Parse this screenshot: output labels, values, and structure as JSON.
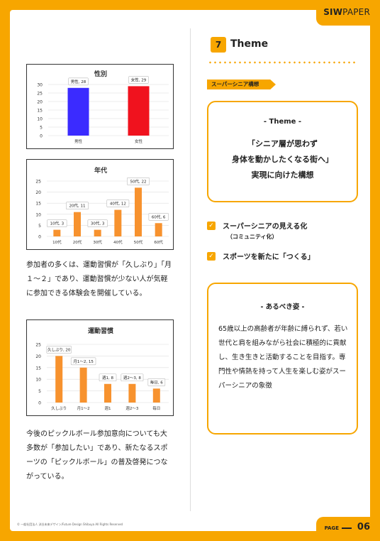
{
  "header": {
    "logo_bold": "SIW",
    "logo_light": "PAPER"
  },
  "left": {
    "paragraph1": "参加者の多くは、運動習慣が「久しぶり」「月１〜２」であり、運動習慣が少ない人が気軽に参加できる体験会を開催している。",
    "paragraph2": "今後のピックルボール参加意向についても大多数が「参加したい」であり、新たなるスポーツの「ピックルボール」の普及啓発につながっている。"
  },
  "chart_data": [
    {
      "type": "bar",
      "title": "性別",
      "categories": [
        "男性",
        "女性"
      ],
      "values": [
        28,
        29
      ],
      "data_labels": [
        "男性, 28",
        "女性, 29"
      ],
      "colors": [
        "#3B2BFF",
        "#F0121E"
      ],
      "ylim": [
        0,
        30
      ],
      "yticks": [
        0,
        5,
        10,
        15,
        20,
        25,
        30
      ],
      "grid": true
    },
    {
      "type": "bar",
      "title": "年代",
      "categories": [
        "10代",
        "20代",
        "30代",
        "40代",
        "50代",
        "60代"
      ],
      "values": [
        3,
        11,
        3,
        12,
        22,
        6
      ],
      "data_labels": [
        "10代, 3",
        "20代, 11",
        "30代, 3",
        "40代, 12",
        "50代, 22",
        "60代, 6"
      ],
      "colors": [
        "#F7922E"
      ],
      "ylim": [
        0,
        25
      ],
      "yticks": [
        0,
        5,
        10,
        15,
        20,
        25
      ],
      "grid": true
    },
    {
      "type": "bar",
      "title": "運動習慣",
      "categories": [
        "久しぶり",
        "月1〜2",
        "週1",
        "週2〜3",
        "毎日"
      ],
      "values": [
        20,
        15,
        8,
        8,
        6
      ],
      "data_labels": [
        "久しぶり, 20",
        "月1〜2, 15",
        "週1, 8",
        "週2〜3, 8",
        "毎日, 6"
      ],
      "colors": [
        "#F7922E"
      ],
      "ylim": [
        0,
        25
      ],
      "yticks": [
        0,
        5,
        10,
        15,
        20,
        25
      ],
      "grid": true
    }
  ],
  "right": {
    "section_number": "7",
    "section_title": "Theme",
    "ribbon": "スーパーシニア構想",
    "theme_label": "- Theme -",
    "theme_lines": [
      "「シニア層が思わず",
      "身体を動かしたくなる街へ」",
      "実現に向けた構想"
    ],
    "check1": "スーパーシニアの見える化",
    "check1_sub": "（コミュニティ化）",
    "check2": "スポーツを新たに「つくる」",
    "check_mark": "✓",
    "ideal_label": "- あるべき姿 -",
    "ideal_text": "65歳以上の高齢者が年齢に縛られず、若い世代と肩を組みながら社会に積極的に貢献し、生き生きと活動することを目指す。専門性や情熱を持って人生を楽しむ姿がスーパーシニアの象徴"
  },
  "footer": {
    "copyright": "© 一般社団法人 渋谷未来デザイン/Future Design Shibuya All Rights Reserved",
    "page_label": "PAGE",
    "page_number": "06"
  }
}
